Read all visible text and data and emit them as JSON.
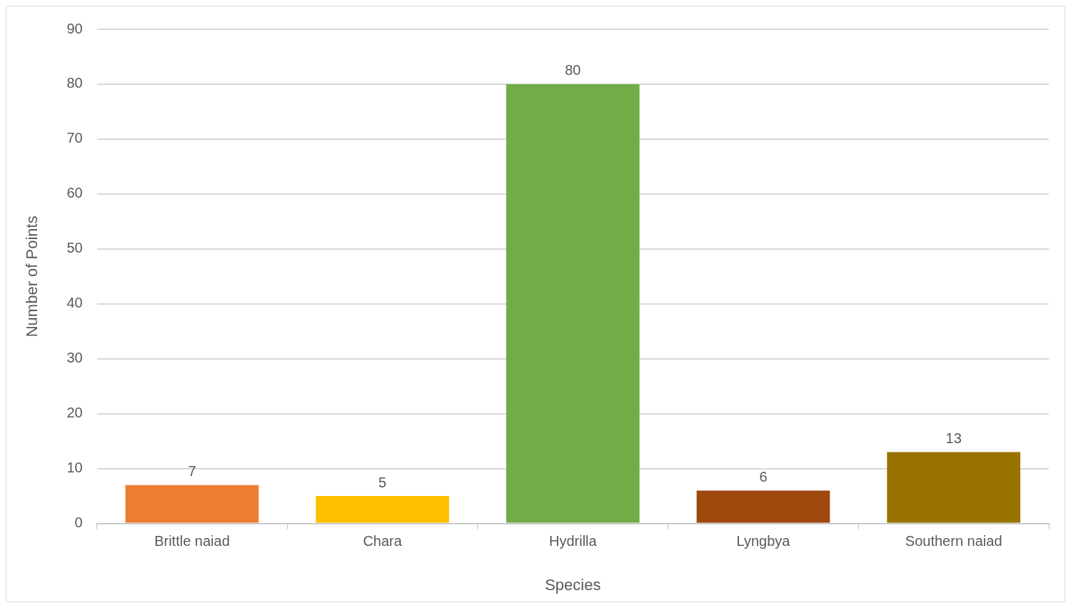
{
  "chart_data": {
    "type": "bar",
    "xlabel": "Species",
    "ylabel": "Number of Points",
    "categories": [
      "Brittle naiad",
      "Chara",
      "Hydrilla",
      "Lyngbya",
      "Southern naiad"
    ],
    "values": [
      7,
      5,
      80,
      6,
      13
    ],
    "colors": [
      "#ed7d31",
      "#ffc000",
      "#70ad47",
      "#9e480e",
      "#997300"
    ],
    "ylim": [
      0,
      90
    ],
    "yticks": [
      0,
      10,
      20,
      30,
      40,
      50,
      60,
      70,
      80,
      90
    ],
    "grid": "y",
    "data_labels": true
  }
}
